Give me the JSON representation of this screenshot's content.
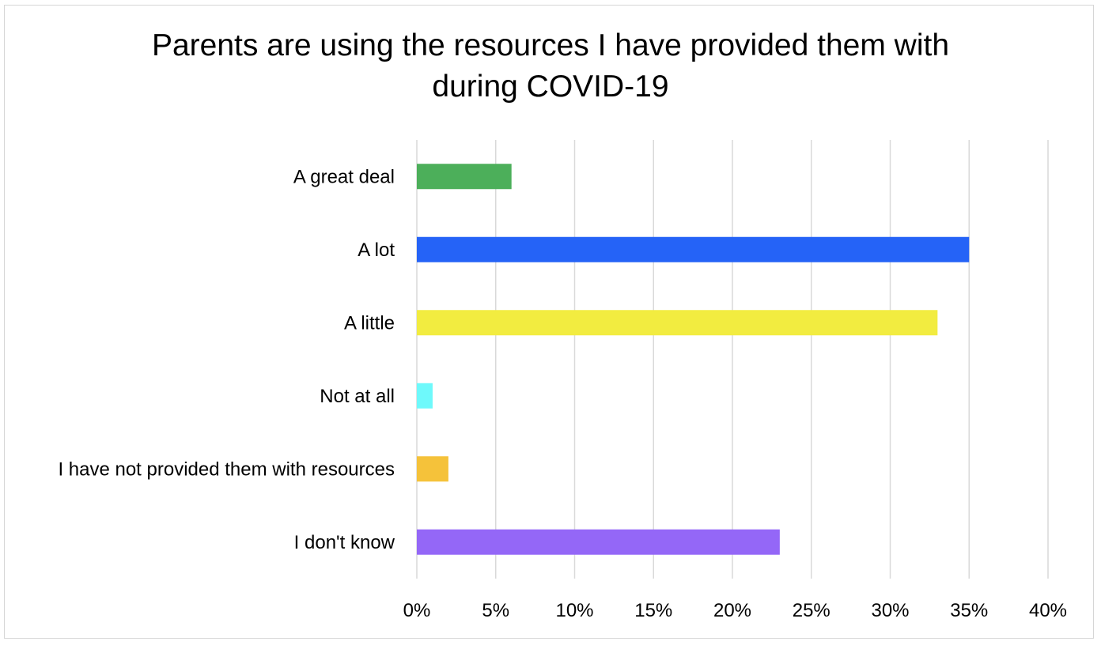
{
  "chart_data": {
    "type": "bar",
    "orientation": "horizontal",
    "title_lines": [
      "Parents are using the resources I have provided them with",
      "during COVID-19"
    ],
    "categories": [
      "A great deal",
      "A lot",
      "A little",
      "Not at all",
      "I have not provided them with resources",
      "I don't know"
    ],
    "values": [
      6,
      35,
      33,
      1,
      2,
      23
    ],
    "colors": [
      "#4caf5a",
      "#2563f7",
      "#f2ec40",
      "#6ef9fb",
      "#f5c23a",
      "#9467f7"
    ],
    "xlim": [
      0,
      40
    ],
    "xticks": [
      0,
      5,
      10,
      15,
      20,
      25,
      30,
      35,
      40
    ],
    "xtick_labels": [
      "0%",
      "5%",
      "10%",
      "15%",
      "20%",
      "25%",
      "30%",
      "35%",
      "40%"
    ],
    "grid": "vertical",
    "grid_color": "#d9d9d9",
    "legend": "none"
  }
}
